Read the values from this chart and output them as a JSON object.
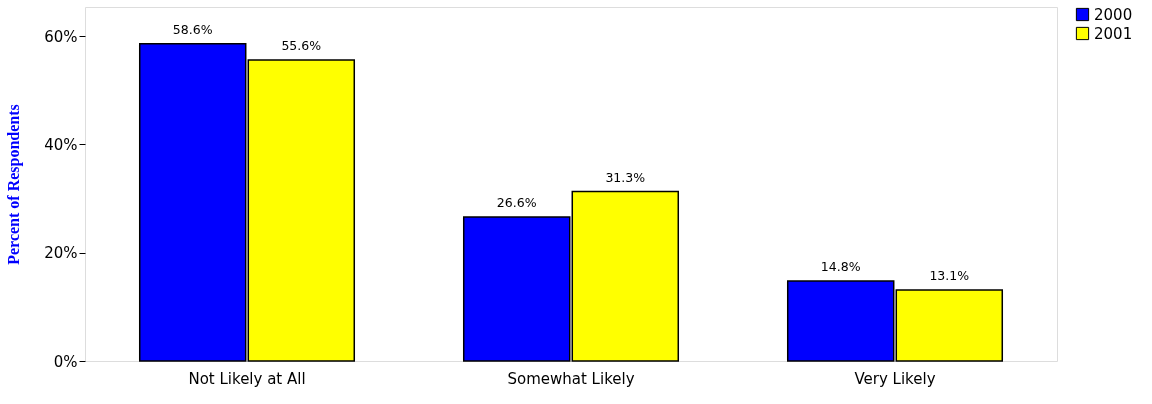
{
  "chart_data": {
    "type": "bar",
    "ylabel": "Percent of Respondents",
    "categories": [
      "Not Likely at All",
      "Somewhat Likely",
      "Very Likely"
    ],
    "series": [
      {
        "name": "2000",
        "color": "#0000ff",
        "values": [
          58.6,
          26.6,
          14.8
        ],
        "value_labels": [
          "58.6%",
          "26.6%",
          "14.8%"
        ]
      },
      {
        "name": "2001",
        "color": "#ffff00",
        "values": [
          55.6,
          31.3,
          13.1
        ],
        "value_labels": [
          "55.6%",
          "31.3%",
          "13.1%"
        ]
      }
    ],
    "ylim": [
      0,
      65.4
    ],
    "yticks": [
      {
        "value": 0,
        "label": "0%"
      },
      {
        "value": 20,
        "label": "20%"
      },
      {
        "value": 40,
        "label": "40%"
      },
      {
        "value": 60,
        "label": "60%"
      }
    ],
    "grid": false,
    "legend": "right"
  }
}
